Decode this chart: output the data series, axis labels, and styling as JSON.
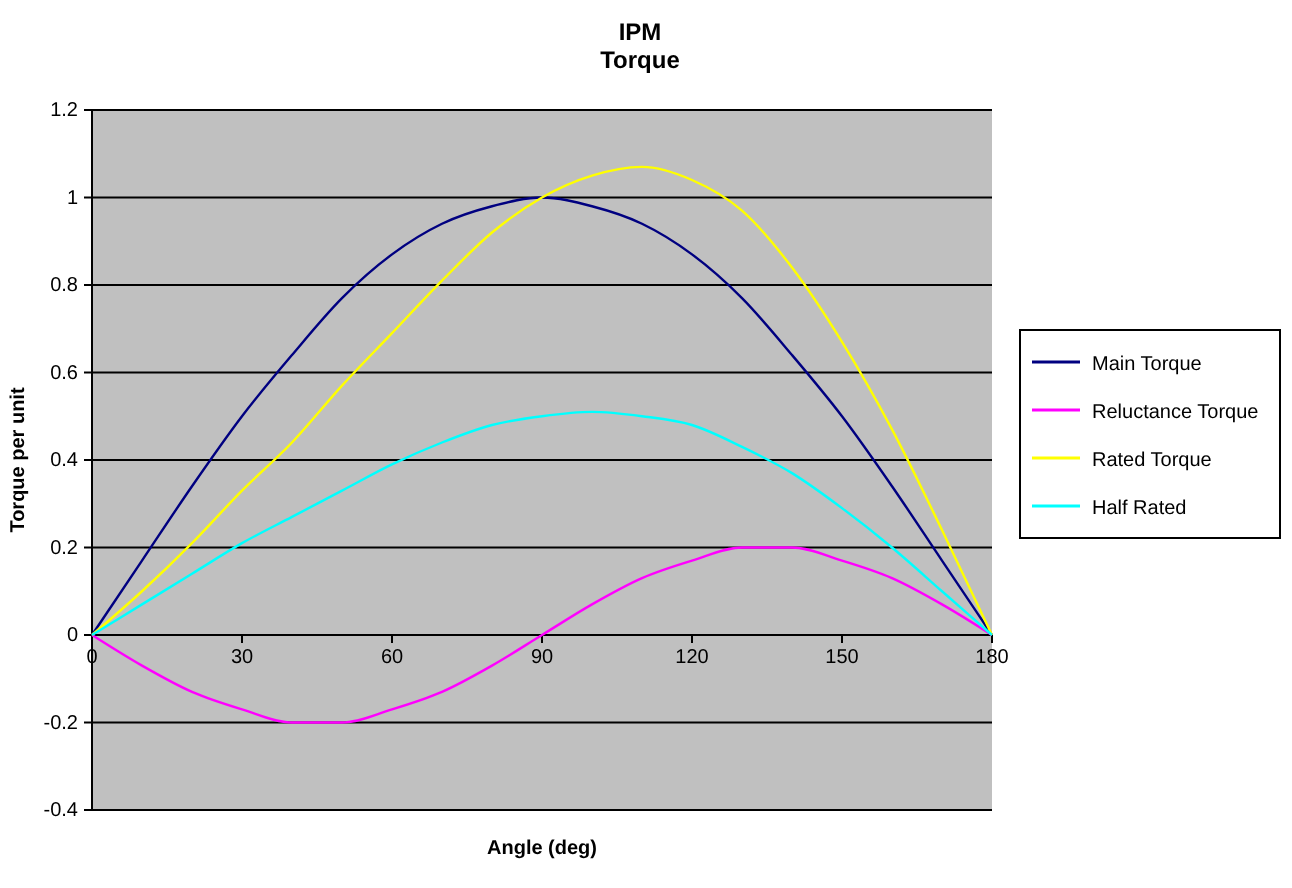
{
  "chart_data": {
    "type": "line",
    "title": "IPM Torque",
    "xlabel": "Angle (deg)",
    "ylabel": "Torque per unit",
    "x": [
      0,
      10,
      20,
      30,
      40,
      50,
      60,
      70,
      80,
      90,
      100,
      110,
      120,
      130,
      140,
      150,
      160,
      170,
      180
    ],
    "series": [
      {
        "name": "Main Torque",
        "color": "#000080",
        "values": [
          0,
          0.17,
          0.34,
          0.5,
          0.64,
          0.77,
          0.87,
          0.94,
          0.98,
          1,
          0.98,
          0.94,
          0.87,
          0.77,
          0.64,
          0.5,
          0.34,
          0.17,
          0
        ]
      },
      {
        "name": "Reluctance Torque",
        "color": "#ff00ff",
        "values": [
          0,
          -0.07,
          -0.13,
          -0.17,
          -0.2,
          -0.2,
          -0.17,
          -0.13,
          -0.07,
          0,
          0.07,
          0.13,
          0.17,
          0.2,
          0.2,
          0.17,
          0.13,
          0.07,
          0
        ]
      },
      {
        "name": "Rated Torque",
        "color": "#ffff00",
        "values": [
          0,
          0.1,
          0.21,
          0.33,
          0.44,
          0.57,
          0.69,
          0.81,
          0.92,
          1,
          1.05,
          1.07,
          1.04,
          0.97,
          0.84,
          0.67,
          0.47,
          0.24,
          0
        ]
      },
      {
        "name": "Half Rated",
        "color": "#00ffff",
        "values": [
          0,
          0.07,
          0.14,
          0.21,
          0.27,
          0.33,
          0.39,
          0.44,
          0.48,
          0.5,
          0.51,
          0.5,
          0.48,
          0.43,
          0.37,
          0.29,
          0.2,
          0.1,
          0
        ]
      }
    ],
    "xlim": [
      0,
      180
    ],
    "xticks": [
      0,
      30,
      60,
      90,
      120,
      150,
      180
    ],
    "ylim": [
      -0.4,
      1.2
    ],
    "yticks": [
      -0.4,
      -0.2,
      0,
      0.2,
      0.4,
      0.6,
      0.8,
      1,
      1.2
    ],
    "grid": "y",
    "legend": "right",
    "marker": "none",
    "line_style": "solid"
  }
}
